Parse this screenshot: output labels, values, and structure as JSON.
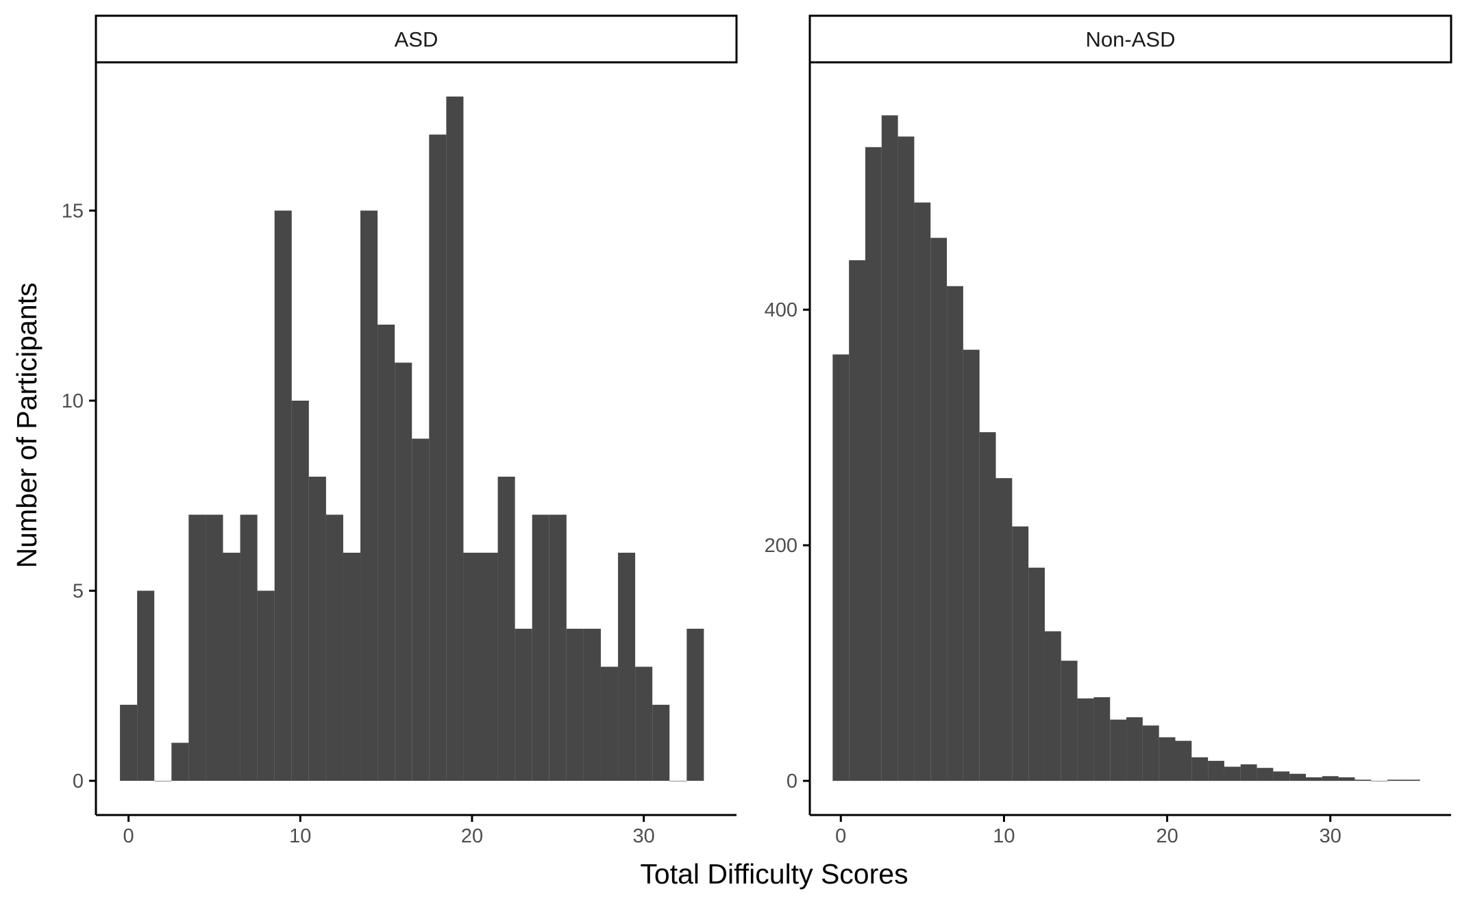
{
  "chart_data": {
    "type": "bar",
    "facet_layout": "two panels side by side, free y scales",
    "xlabel": "Total Difficulty Scores",
    "ylabel": "Number of Participants",
    "bar_color": "#474747",
    "axis_color": "#000000",
    "tick_label_color": "#4d4d4d",
    "grid": false,
    "legend": "none",
    "panels": [
      {
        "strip_label": "ASD",
        "xlim": [
          -1.9,
          35.4
        ],
        "ylim": [
          -0.9,
          18.9
        ],
        "x_ticks": [
          0,
          10,
          20,
          30
        ],
        "y_ticks": [
          0,
          5,
          10,
          15
        ],
        "bin_width": 1,
        "x": [
          0,
          1,
          2,
          3,
          4,
          5,
          6,
          7,
          8,
          9,
          10,
          11,
          12,
          13,
          14,
          15,
          16,
          17,
          18,
          19,
          20,
          21,
          22,
          23,
          24,
          25,
          26,
          27,
          28,
          29,
          30,
          31,
          32,
          33
        ],
        "values": [
          2,
          5,
          0,
          1,
          7,
          7,
          6,
          7,
          5,
          15,
          10,
          8,
          7,
          6,
          15,
          12,
          11,
          9,
          17,
          18,
          6,
          6,
          8,
          4,
          7,
          7,
          4,
          4,
          3,
          6,
          3,
          2,
          0,
          4
        ]
      },
      {
        "strip_label": "Non-ASD",
        "xlim": [
          -1.9,
          37.4
        ],
        "ylim": [
          -29,
          610
        ],
        "x_ticks": [
          0,
          10,
          20,
          30
        ],
        "y_ticks": [
          0,
          200,
          400
        ],
        "bin_width": 1,
        "x": [
          0,
          1,
          2,
          3,
          4,
          5,
          6,
          7,
          8,
          9,
          10,
          11,
          12,
          13,
          14,
          15,
          16,
          17,
          18,
          19,
          20,
          21,
          22,
          23,
          24,
          25,
          26,
          27,
          28,
          29,
          30,
          31,
          32,
          33,
          34,
          35
        ],
        "values": [
          362,
          442,
          538,
          565,
          547,
          491,
          461,
          420,
          366,
          296,
          257,
          216,
          181,
          127,
          102,
          70,
          71,
          52,
          54,
          47,
          37,
          34,
          20,
          17,
          12,
          14,
          11,
          8,
          6,
          3,
          4,
          3,
          1,
          0,
          1,
          1
        ]
      }
    ]
  }
}
